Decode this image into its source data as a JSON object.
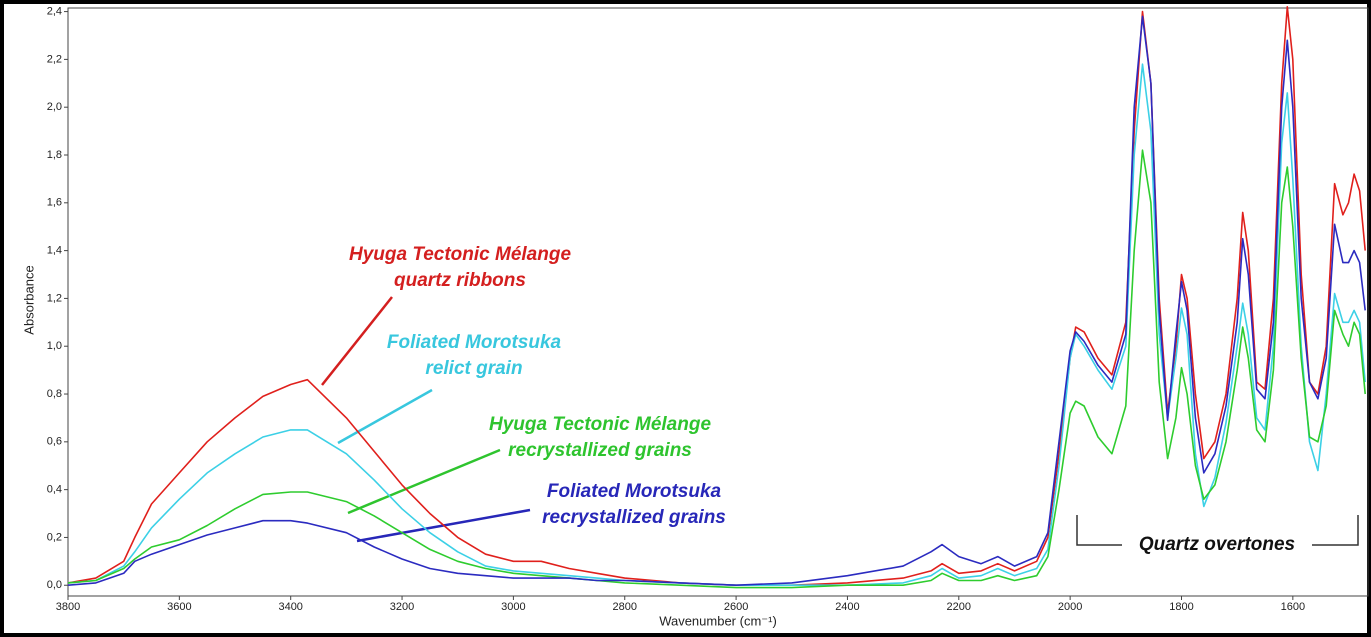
{
  "chart_data": {
    "type": "line",
    "x_label": "Wavenumber (cm⁻¹)",
    "y_label": "Absorbance",
    "xlim": [
      3800,
      1465
    ],
    "ylim": [
      -0.045,
      2.415
    ],
    "xticks": [
      3800,
      3600,
      3400,
      3200,
      3000,
      2800,
      2600,
      2400,
      2200,
      2000,
      1800,
      1600
    ],
    "yticks": [
      {
        "value": 0,
        "label": "0,0"
      },
      {
        "value": 0.2,
        "label": "0,2"
      },
      {
        "value": 0.4,
        "label": "0,4"
      },
      {
        "value": 0.6,
        "label": "0,6"
      },
      {
        "value": 0.8,
        "label": "0,8"
      },
      {
        "value": 1.0,
        "label": "1,0"
      },
      {
        "value": 1.2,
        "label": "1,2"
      },
      {
        "value": 1.4,
        "label": "1,4"
      },
      {
        "value": 1.6,
        "label": "1,6"
      },
      {
        "value": 1.8,
        "label": "1,8"
      },
      {
        "value": 2.0,
        "label": "2,0"
      },
      {
        "value": 2.2,
        "label": "2,2"
      },
      {
        "value": 2.4,
        "label": "2,4"
      }
    ],
    "x": [
      3800,
      3750,
      3700,
      3680,
      3650,
      3600,
      3550,
      3500,
      3450,
      3400,
      3370,
      3300,
      3250,
      3200,
      3150,
      3100,
      3050,
      3000,
      2950,
      2900,
      2850,
      2800,
      2700,
      2600,
      2500,
      2400,
      2300,
      2250,
      2230,
      2200,
      2160,
      2130,
      2100,
      2060,
      2040,
      2020,
      2000,
      1990,
      1975,
      1950,
      1925,
      1900,
      1885,
      1870,
      1855,
      1840,
      1825,
      1810,
      1800,
      1790,
      1775,
      1760,
      1740,
      1720,
      1700,
      1690,
      1680,
      1665,
      1650,
      1635,
      1620,
      1610,
      1600,
      1585,
      1570,
      1555,
      1540,
      1525,
      1510,
      1500,
      1490,
      1480,
      1470
    ],
    "series": [
      {
        "color": "#e0201c",
        "values": [
          0.01,
          0.03,
          0.1,
          0.2,
          0.34,
          0.47,
          0.6,
          0.7,
          0.79,
          0.84,
          0.86,
          0.7,
          0.56,
          0.42,
          0.3,
          0.2,
          0.13,
          0.1,
          0.1,
          0.07,
          0.05,
          0.03,
          0.01,
          0.0,
          0.0,
          0.01,
          0.03,
          0.06,
          0.09,
          0.05,
          0.06,
          0.09,
          0.06,
          0.1,
          0.2,
          0.55,
          0.95,
          1.08,
          1.06,
          0.95,
          0.88,
          1.1,
          1.9,
          2.4,
          2.1,
          1.2,
          0.72,
          1.0,
          1.3,
          1.2,
          0.8,
          0.53,
          0.6,
          0.8,
          1.2,
          1.56,
          1.4,
          0.85,
          0.82,
          1.2,
          2.1,
          2.42,
          2.2,
          1.3,
          0.85,
          0.8,
          1.0,
          1.68,
          1.55,
          1.6,
          1.72,
          1.65,
          1.4
        ]
      },
      {
        "color": "#3cd0e6",
        "values": [
          0.01,
          0.02,
          0.08,
          0.14,
          0.24,
          0.36,
          0.47,
          0.55,
          0.62,
          0.65,
          0.65,
          0.55,
          0.44,
          0.32,
          0.22,
          0.14,
          0.08,
          0.06,
          0.05,
          0.04,
          0.03,
          0.02,
          0.01,
          0.0,
          0.0,
          0.0,
          0.01,
          0.04,
          0.07,
          0.03,
          0.04,
          0.07,
          0.04,
          0.07,
          0.15,
          0.5,
          0.95,
          1.05,
          1.0,
          0.9,
          0.82,
          1.0,
          1.8,
          2.18,
          1.9,
          1.05,
          0.7,
          0.95,
          1.16,
          1.05,
          0.55,
          0.33,
          0.45,
          0.68,
          1.0,
          1.18,
          1.05,
          0.7,
          0.65,
          1.0,
          1.85,
          2.06,
          1.7,
          1.0,
          0.6,
          0.48,
          0.8,
          1.22,
          1.1,
          1.1,
          1.15,
          1.1,
          0.85
        ]
      },
      {
        "color": "#2ecc2e",
        "values": [
          0.01,
          0.02,
          0.07,
          0.11,
          0.16,
          0.19,
          0.25,
          0.32,
          0.38,
          0.39,
          0.39,
          0.35,
          0.29,
          0.22,
          0.15,
          0.1,
          0.07,
          0.05,
          0.04,
          0.03,
          0.02,
          0.01,
          0.0,
          -0.01,
          -0.01,
          0.0,
          0.0,
          0.02,
          0.05,
          0.02,
          0.02,
          0.04,
          0.02,
          0.04,
          0.12,
          0.4,
          0.72,
          0.77,
          0.75,
          0.62,
          0.55,
          0.75,
          1.4,
          1.82,
          1.6,
          0.85,
          0.53,
          0.7,
          0.91,
          0.8,
          0.5,
          0.36,
          0.42,
          0.6,
          0.9,
          1.08,
          0.95,
          0.65,
          0.6,
          0.9,
          1.6,
          1.75,
          1.5,
          0.95,
          0.62,
          0.6,
          0.75,
          1.15,
          1.05,
          1.0,
          1.1,
          1.05,
          0.8
        ]
      },
      {
        "color": "#2b2bc0",
        "values": [
          0.0,
          0.01,
          0.05,
          0.1,
          0.13,
          0.17,
          0.21,
          0.24,
          0.27,
          0.27,
          0.26,
          0.22,
          0.16,
          0.11,
          0.07,
          0.05,
          0.04,
          0.03,
          0.03,
          0.03,
          0.02,
          0.02,
          0.01,
          0.0,
          0.01,
          0.04,
          0.08,
          0.14,
          0.17,
          0.12,
          0.09,
          0.12,
          0.08,
          0.12,
          0.22,
          0.6,
          0.98,
          1.06,
          1.02,
          0.92,
          0.85,
          1.05,
          2.0,
          2.38,
          2.1,
          1.15,
          0.69,
          1.05,
          1.27,
          1.15,
          0.7,
          0.47,
          0.55,
          0.75,
          1.1,
          1.45,
          1.3,
          0.82,
          0.78,
          1.1,
          2.0,
          2.28,
          2.0,
          1.2,
          0.85,
          0.78,
          0.95,
          1.51,
          1.35,
          1.35,
          1.4,
          1.35,
          1.15
        ]
      }
    ],
    "annotations": [
      {
        "lines": [
          "Hyuga Tectonic Mélange",
          "quartz ribbons"
        ],
        "color": "#d41f1f"
      },
      {
        "lines": [
          "Foliated Morotsuka",
          "relict grain"
        ],
        "color": "#38c7de"
      },
      {
        "lines": [
          "Hyuga Tectonic Mélange",
          "recrystallized grains"
        ],
        "color": "#2ec42e"
      },
      {
        "lines": [
          "Foliated Morotsuka",
          "recrystallized grains"
        ],
        "color": "#2727b8"
      },
      {
        "lines": [
          "Quartz overtones"
        ],
        "color": "#111111"
      }
    ]
  }
}
